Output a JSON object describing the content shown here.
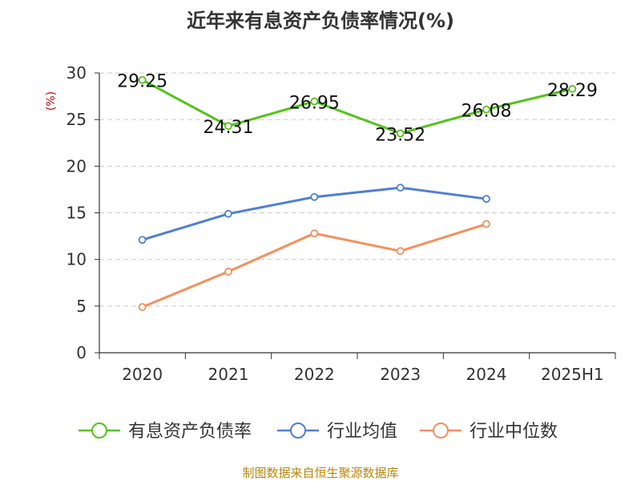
{
  "title": "近年来有息资产负债率情况(%)",
  "source": "制图数据来自恒生聚源数据库",
  "colors": {
    "axis": "#333333",
    "grid": "#cccccc",
    "tick_text": "#333333",
    "unit_text": "#cc0000",
    "source_text": "#b8860b"
  },
  "chart_data": {
    "type": "line",
    "title": "近年来有息资产负债率情况(%)",
    "ylabel": "(%)",
    "xlabel": "",
    "categories": [
      "2020",
      "2021",
      "2022",
      "2023",
      "2024",
      "2025H1"
    ],
    "ylim": [
      0,
      30
    ],
    "yticks": [
      0,
      5,
      10,
      15,
      20,
      25,
      30
    ],
    "grid": true,
    "legend_position": "bottom",
    "series": [
      {
        "name": "有息资产负债率",
        "color": "#52c41a",
        "values": [
          29.25,
          24.31,
          26.95,
          23.52,
          26.08,
          28.29
        ],
        "labels": [
          "29.25",
          "24.31",
          "26.95",
          "23.52",
          "26.08",
          "28.29"
        ]
      },
      {
        "name": "行业均值",
        "color": "#4e7fd6",
        "values": [
          12.1,
          14.9,
          16.7,
          17.7,
          16.5,
          null
        ]
      },
      {
        "name": "行业中位数",
        "color": "#f4905d",
        "values": [
          4.9,
          8.7,
          12.8,
          10.9,
          13.8,
          null
        ]
      }
    ]
  }
}
